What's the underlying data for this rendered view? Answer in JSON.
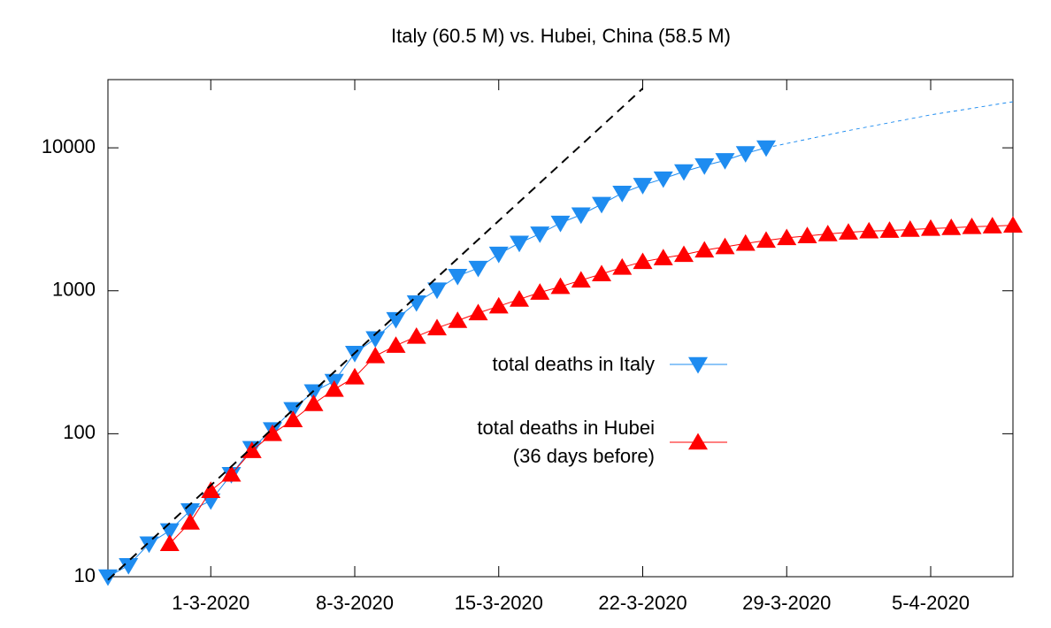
{
  "chart_data": {
    "type": "line",
    "title": "Italy (60.5 M) vs. Hubei, China (58.5 M)",
    "log_y": true,
    "xlim": [
      "2020-02-25",
      "2020-04-09"
    ],
    "xticks": [
      {
        "value": "2020-03-01",
        "label": "1-3-2020"
      },
      {
        "value": "2020-03-08",
        "label": "8-3-2020"
      },
      {
        "value": "2020-03-15",
        "label": "15-3-2020"
      },
      {
        "value": "2020-03-22",
        "label": "22-3-2020"
      },
      {
        "value": "2020-03-29",
        "label": "29-3-2020"
      },
      {
        "value": "2020-04-05",
        "label": "5-4-2020"
      }
    ],
    "ylim": [
      10,
      30000
    ],
    "yticks": [
      10,
      100,
      1000,
      10000
    ],
    "series": [
      {
        "name": "total deaths in Italy",
        "color": "#1e8cf0",
        "marker": "triangle-down",
        "x": [
          "2020-02-25",
          "2020-02-26",
          "2020-02-27",
          "2020-02-28",
          "2020-02-29",
          "2020-03-01",
          "2020-03-02",
          "2020-03-03",
          "2020-03-04",
          "2020-03-05",
          "2020-03-06",
          "2020-03-07",
          "2020-03-08",
          "2020-03-09",
          "2020-03-10",
          "2020-03-11",
          "2020-03-12",
          "2020-03-13",
          "2020-03-14",
          "2020-03-15",
          "2020-03-16",
          "2020-03-17",
          "2020-03-18",
          "2020-03-19",
          "2020-03-20",
          "2020-03-21",
          "2020-03-22",
          "2020-03-23",
          "2020-03-24",
          "2020-03-25",
          "2020-03-26",
          "2020-03-27",
          "2020-03-28"
        ],
        "values": [
          10,
          12,
          17,
          21,
          29,
          34,
          52,
          79,
          107,
          148,
          197,
          233,
          366,
          463,
          631,
          827,
          1016,
          1266,
          1441,
          1809,
          2158,
          2503,
          2978,
          3405,
          4032,
          4825,
          5476,
          6077,
          6820,
          7503,
          8165,
          9134,
          10023
        ]
      },
      {
        "name": "total deaths in Hubei\n(36 days before)",
        "color": "#ff0000",
        "marker": "triangle-up",
        "x": [
          "2020-02-28",
          "2020-02-29",
          "2020-03-01",
          "2020-03-02",
          "2020-03-03",
          "2020-03-04",
          "2020-03-05",
          "2020-03-06",
          "2020-03-07",
          "2020-03-08",
          "2020-03-09",
          "2020-03-10",
          "2020-03-11",
          "2020-03-12",
          "2020-03-13",
          "2020-03-14",
          "2020-03-15",
          "2020-03-16",
          "2020-03-17",
          "2020-03-18",
          "2020-03-19",
          "2020-03-20",
          "2020-03-21",
          "2020-03-22",
          "2020-03-23",
          "2020-03-24",
          "2020-03-25",
          "2020-03-26",
          "2020-03-27",
          "2020-03-28",
          "2020-03-29",
          "2020-03-30",
          "2020-03-31",
          "2020-04-01",
          "2020-04-02",
          "2020-04-03",
          "2020-04-04",
          "2020-04-05",
          "2020-04-06",
          "2020-04-07",
          "2020-04-08",
          "2020-04-09"
        ],
        "values": [
          17,
          24,
          40,
          52,
          76,
          100,
          125,
          162,
          204,
          249,
          350,
          414,
          479,
          549,
          618,
          699,
          780,
          871,
          974,
          1068,
          1185,
          1310,
          1457,
          1596,
          1696,
          1789,
          1921,
          2029,
          2144,
          2250,
          2346,
          2420,
          2496,
          2563,
          2615,
          2641,
          2682,
          2727,
          2761,
          2803,
          2835,
          2871
        ]
      },
      {
        "color": "#000000",
        "dash": "dashed",
        "x": [
          "2020-02-25",
          "2020-03-22"
        ],
        "values": [
          9.5,
          26000
        ]
      },
      {
        "color": "#1e8cf0",
        "dash": "dotted",
        "x": [
          "2020-03-28",
          "2020-04-01",
          "2020-04-05",
          "2020-04-09"
        ],
        "values": [
          10000,
          13200,
          17000,
          21000
        ]
      }
    ]
  }
}
